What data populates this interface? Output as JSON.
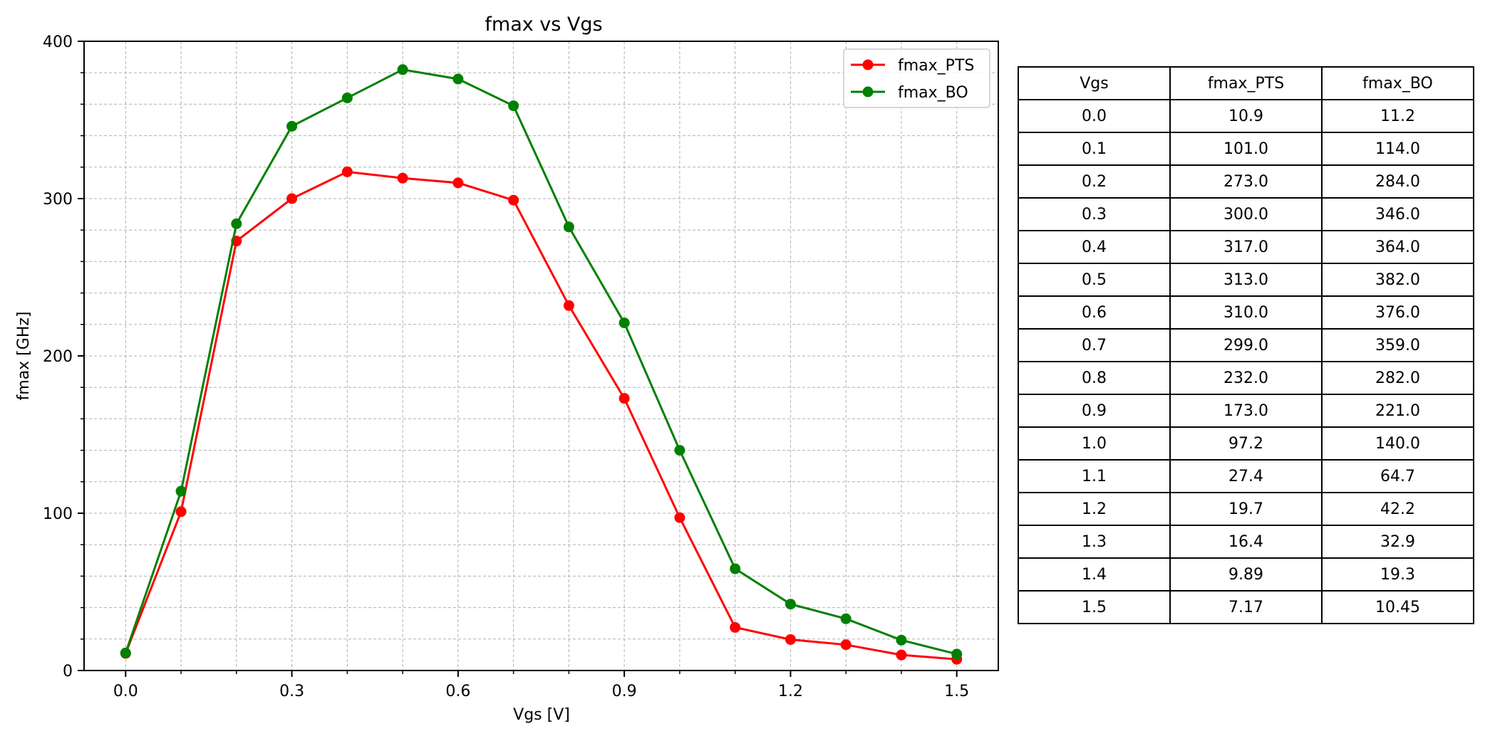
{
  "chart_data": {
    "type": "line",
    "title": "fmax vs Vgs",
    "xlabel": "Vgs [V]",
    "ylabel": "fmax [GHz]",
    "xlim": [
      -0.075,
      1.575
    ],
    "ylim": [
      0,
      400
    ],
    "xticks": [
      "0.0",
      "0.3",
      "0.6",
      "0.9",
      "1.2",
      "1.5"
    ],
    "yticks": [
      "0",
      "100",
      "200",
      "300",
      "400"
    ],
    "x": [
      0.0,
      0.1,
      0.2,
      0.3,
      0.4,
      0.5,
      0.6,
      0.7,
      0.8,
      0.9,
      1.0,
      1.1,
      1.2,
      1.3,
      1.4,
      1.5
    ],
    "series": [
      {
        "name": "fmax_PTS",
        "color": "#ff0000",
        "values": [
          10.9,
          101.0,
          273.0,
          300.0,
          317.0,
          313.0,
          310.0,
          299.0,
          232.0,
          173.0,
          97.2,
          27.4,
          19.7,
          16.4,
          9.89,
          7.17
        ]
      },
      {
        "name": "fmax_BO",
        "color": "#008000",
        "values": [
          11.2,
          114.0,
          284.0,
          346.0,
          364.0,
          382.0,
          376.0,
          359.0,
          282.0,
          221.0,
          140.0,
          64.7,
          42.2,
          32.9,
          19.3,
          10.45
        ]
      }
    ],
    "grid": true,
    "minor_grid": true,
    "legend": "top-right"
  },
  "table": {
    "headers": [
      "Vgs",
      "fmax_PTS",
      "fmax_BO"
    ],
    "rows": [
      [
        "0.0",
        "10.9",
        "11.2"
      ],
      [
        "0.1",
        "101.0",
        "114.0"
      ],
      [
        "0.2",
        "273.0",
        "284.0"
      ],
      [
        "0.3",
        "300.0",
        "346.0"
      ],
      [
        "0.4",
        "317.0",
        "364.0"
      ],
      [
        "0.5",
        "313.0",
        "382.0"
      ],
      [
        "0.6",
        "310.0",
        "376.0"
      ],
      [
        "0.7",
        "299.0",
        "359.0"
      ],
      [
        "0.8",
        "232.0",
        "282.0"
      ],
      [
        "0.9",
        "173.0",
        "221.0"
      ],
      [
        "1.0",
        "97.2",
        "140.0"
      ],
      [
        "1.1",
        "27.4",
        "64.7"
      ],
      [
        "1.2",
        "19.7",
        "42.2"
      ],
      [
        "1.3",
        "16.4",
        "32.9"
      ],
      [
        "1.4",
        "9.89",
        "19.3"
      ],
      [
        "1.5",
        "7.17",
        "10.45"
      ]
    ]
  }
}
